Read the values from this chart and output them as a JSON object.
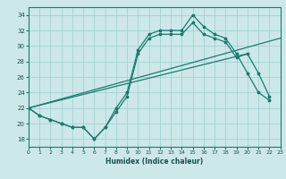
{
  "xlabel": "Humidex (Indice chaleur)",
  "bg_color": "#cce8ea",
  "grid_color": "#9ecdd0",
  "line_color": "#1b7b6e",
  "xlim": [
    0,
    23
  ],
  "ylim": [
    17,
    35
  ],
  "xticks": [
    0,
    1,
    2,
    3,
    4,
    5,
    6,
    7,
    8,
    9,
    10,
    11,
    12,
    13,
    14,
    15,
    16,
    17,
    18,
    19,
    20,
    21,
    22,
    23
  ],
  "yticks": [
    18,
    20,
    22,
    24,
    26,
    28,
    30,
    32,
    34
  ],
  "line_wavy1": {
    "x": [
      0,
      1,
      2,
      3,
      4,
      5,
      6,
      7,
      8,
      9,
      10,
      11,
      12,
      13,
      14,
      15,
      16,
      17,
      18,
      19,
      20,
      21,
      22
    ],
    "y": [
      22,
      21,
      20.5,
      20,
      19.5,
      19.5,
      18,
      19.5,
      22,
      24,
      29.5,
      31.5,
      32,
      32,
      32,
      34,
      32.5,
      31.5,
      31,
      29,
      26.5,
      24,
      23
    ]
  },
  "line_wavy2": {
    "x": [
      0,
      1,
      2,
      3,
      4,
      5,
      6,
      7,
      8,
      9,
      10,
      11,
      12,
      13,
      14,
      15,
      16,
      17,
      18,
      19,
      20,
      21,
      22
    ],
    "y": [
      22,
      21,
      20.5,
      20,
      19.5,
      19.5,
      18,
      19.5,
      21.5,
      23.5,
      29,
      31,
      31.5,
      31.5,
      31.5,
      33,
      31.5,
      31,
      30.5,
      28.5,
      29,
      26.5,
      23.5
    ]
  },
  "line_diag1": {
    "x": [
      0,
      23
    ],
    "y": [
      22,
      31
    ]
  },
  "line_diag2": {
    "x": [
      0,
      20
    ],
    "y": [
      22,
      29
    ]
  }
}
